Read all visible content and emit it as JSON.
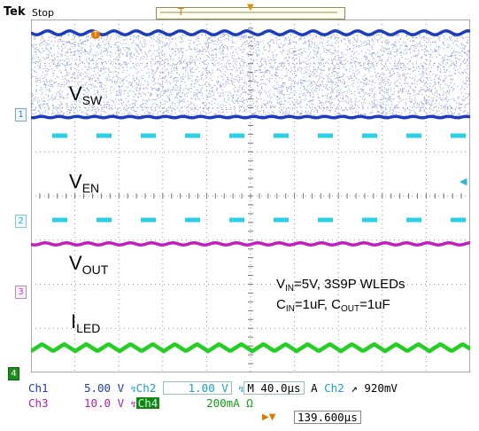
{
  "header": {
    "brand": "Tek",
    "run_state": "Stop",
    "trigger_position_marker": "T"
  },
  "screen": {
    "channel_markers": [
      "1",
      "2",
      "3",
      "4"
    ],
    "trigger_marker": "T"
  },
  "traces": {
    "ch1_label": "V",
    "ch1_sub": "SW",
    "ch2_label": "V",
    "ch2_sub": "EN",
    "ch3_label": "V",
    "ch3_sub": "OUT",
    "ch4_label": "I",
    "ch4_sub": "LED"
  },
  "note": {
    "line1_vin": "V",
    "line1_vin_sub": "IN",
    "line1_rest": "=5V, 3S9P WLEDs",
    "line2_cin": "C",
    "line2_cin_sub": "IN",
    "line2_mid": "=1uF, C",
    "line2_cout_sub": "OUT",
    "line2_end": "=1uF"
  },
  "readout": {
    "ch1_name": "Ch1",
    "ch1_scale": "5.00 V",
    "ch2_name": "Ch2",
    "ch2_scale": "1.00 V",
    "timebase": "M 40.0µs",
    "trigger_mode": "A",
    "trigger_source": "Ch2",
    "trigger_slope": "↗",
    "trigger_level": "920mV",
    "ch3_name": "Ch3",
    "ch3_scale": "10.0 V",
    "ch4_name": "Ch4",
    "ch4_scale": "200mA Ω",
    "trigger_time": "139.600µs"
  },
  "colors": {
    "ch1": "#1a3cbf",
    "ch2": "#2ad0e6",
    "ch3": "#c020c0",
    "ch4": "#22d022",
    "grid": "#9a9a9a",
    "noise": "#6a7ad8"
  }
}
